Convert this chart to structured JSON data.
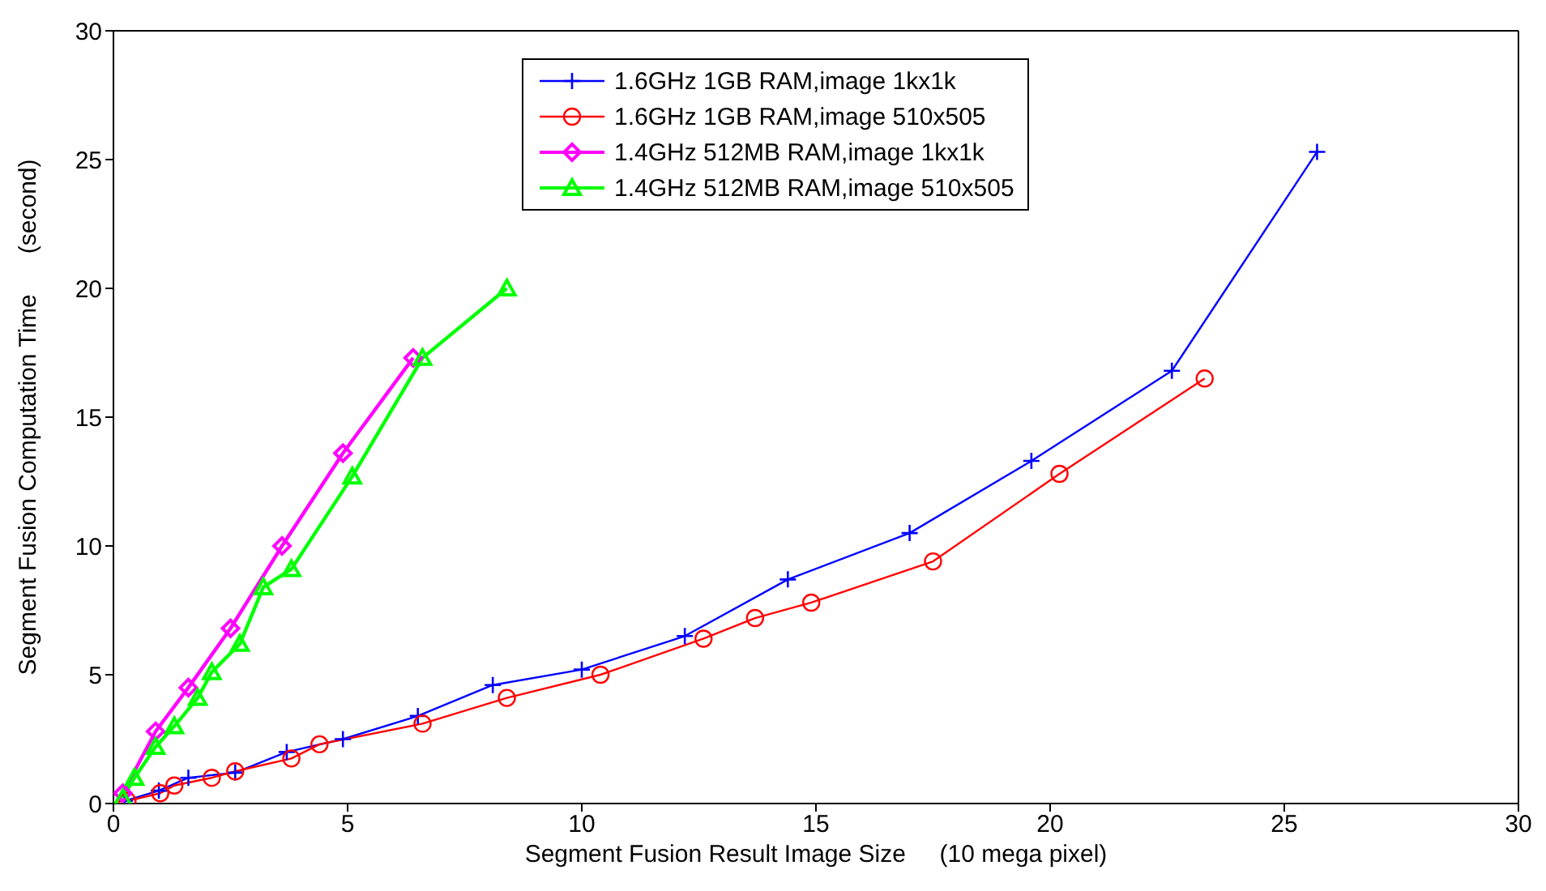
{
  "chart_data": {
    "type": "line",
    "xlabel": "Segment Fusion Result Image Size     (10 mega pixel)",
    "ylabel": "Segment Fusion Computation Time      (second)",
    "xlim": [
      0,
      30
    ],
    "xticks": [
      0,
      5,
      10,
      15,
      20,
      25,
      30
    ],
    "ylim": [
      0,
      30
    ],
    "yticks": [
      0,
      5,
      10,
      15,
      20,
      25,
      30
    ],
    "legend": "top",
    "line_style": "solid",
    "series": [
      {
        "name": "1.6GHz 1GB RAM,image 1kx1k",
        "color": "#0000ff",
        "marker": "cross",
        "x": [
          0.24,
          0.97,
          1.6,
          2.6,
          3.7,
          4.9,
          6.5,
          8.1,
          10.0,
          12.2,
          14.4,
          17.0,
          19.6,
          22.6,
          25.7
        ],
        "values": [
          0.1,
          0.5,
          1.0,
          1.2,
          2.0,
          2.5,
          3.4,
          4.6,
          5.2,
          6.5,
          8.7,
          10.5,
          13.3,
          16.8,
          25.3
        ]
      },
      {
        "name": "1.6GHz 1GB RAM,image 510x505",
        "color": "#ff0000",
        "marker": "circle",
        "x": [
          0.3,
          1.0,
          1.3,
          2.1,
          2.6,
          3.8,
          4.4,
          6.6,
          8.4,
          10.4,
          12.6,
          13.7,
          14.9,
          17.5,
          20.2,
          23.3
        ],
        "values": [
          0.1,
          0.4,
          0.7,
          1.0,
          1.25,
          1.75,
          2.3,
          3.1,
          4.1,
          5.0,
          6.4,
          7.2,
          7.8,
          9.4,
          12.8,
          16.5
        ]
      },
      {
        "name": "1.4GHz 512MB RAM,image 1kx1k",
        "color": "#ff00ff",
        "marker": "diamond",
        "x": [
          0.2,
          0.9,
          1.6,
          2.5,
          3.6,
          4.9,
          6.4
        ],
        "values": [
          0.4,
          2.8,
          4.5,
          6.8,
          10.0,
          13.6,
          17.3
        ]
      },
      {
        "name": "1.4GHz 512MB RAM,image 510x505",
        "color": "#00ff00",
        "marker": "triangle",
        "x": [
          0.2,
          0.45,
          0.9,
          1.3,
          1.8,
          2.1,
          2.7,
          3.2,
          3.8,
          5.1,
          6.6,
          8.4
        ],
        "values": [
          0.2,
          1.0,
          2.2,
          3.0,
          4.1,
          5.1,
          6.2,
          8.4,
          9.1,
          12.7,
          17.3,
          20.0
        ]
      }
    ]
  }
}
